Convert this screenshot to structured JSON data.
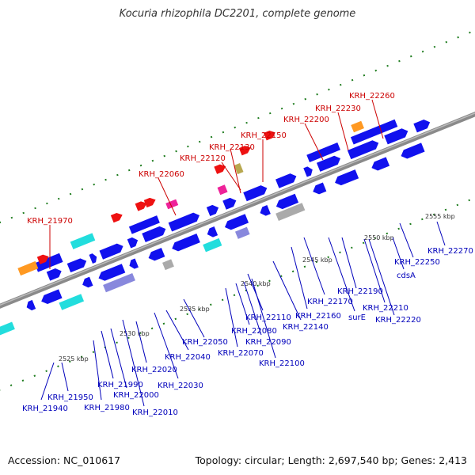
{
  "header": {
    "title": "Kocuria rhizophila DC2201, complete genome"
  },
  "footer": {
    "accession": "Accession: NC_010617",
    "summary": "Topology: circular; Length: 2,697,540 bp; Genes: 2,413"
  },
  "scale_labels": [
    "2525 kbp",
    "2530 kbp",
    "2535 kbp",
    "2540 kbp",
    "2545 kbp",
    "2550 kbp",
    "2555 kbp"
  ],
  "upper_loci": [
    "KRH_21970",
    "KRH_22060",
    "KRH_22120",
    "KRH_22130",
    "KRH_22150",
    "KRH_22200",
    "KRH_22230",
    "KRH_22260"
  ],
  "lower_loci": [
    "KRH_21940",
    "KRH_21950",
    "KRH_21980",
    "KRH_21990",
    "KRH_22000",
    "KRH_22010",
    "KRH_22020",
    "KRH_22030",
    "KRH_22040",
    "KRH_22050",
    "KRH_22070",
    "KRH_22080",
    "KRH_22090",
    "KRH_22100",
    "KRH_22110",
    "KRH_22140",
    "KRH_22160",
    "KRH_22170",
    "surE",
    "KRH_22190",
    "KRH_22210",
    "KRH_22220",
    "cdsA",
    "KRH_22250",
    "KRH_22270"
  ],
  "colors": {
    "backbone": "#8a8a8a",
    "forward_gene": "#1111ee",
    "rna_gene": "#ee1111",
    "upper_label": "#cc0000",
    "lower_label": "#0000bb",
    "tick_green": "#1a7a1a",
    "cyan": "#22dddd",
    "orange": "#ff9922",
    "magenta": "#ee2299",
    "olive": "#b8a850",
    "lavender": "#8888dd",
    "grey_box": "#aaaaaa"
  }
}
